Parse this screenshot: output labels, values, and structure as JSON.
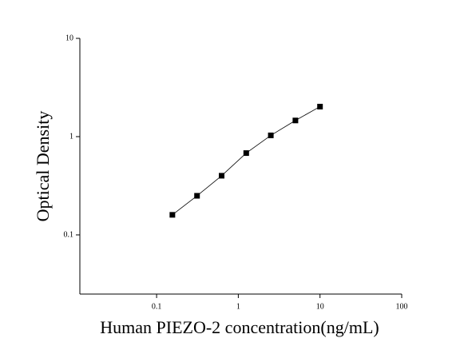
{
  "chart_data": {
    "type": "scatter",
    "x_label": "Human PIEZO-2 concentration(ng/mL)",
    "y_label": "Optical Density",
    "x": [
      0.156,
      0.3125,
      0.625,
      1.25,
      2.5,
      5,
      10
    ],
    "series": [
      {
        "values": [
          0.16,
          0.25,
          0.4,
          0.68,
          1.03,
          1.46,
          2.02
        ],
        "color": "#000000"
      }
    ],
    "line": true,
    "xlog": true,
    "ylog": true,
    "xlim": [
      0.0115,
      100
    ],
    "xticks": [
      0.1,
      1,
      10,
      100
    ],
    "ylim": [
      0.025,
      10
    ],
    "yticks": [
      0.1,
      1,
      10
    ]
  }
}
